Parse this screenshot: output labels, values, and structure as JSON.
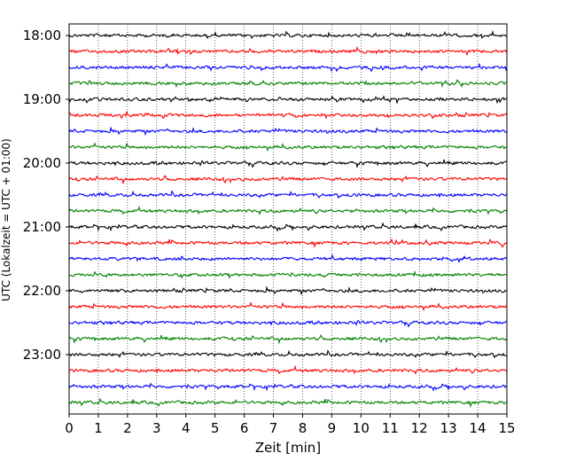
{
  "chart_data": {
    "type": "line",
    "title": "",
    "xlabel": "Zeit  [min]",
    "ylabel": "UTC (Lokalzeit = UTC + 01:00)",
    "xlim": [
      0,
      15
    ],
    "x_ticks": [
      "0",
      "1",
      "2",
      "3",
      "4",
      "5",
      "6",
      "7",
      "8",
      "9",
      "10",
      "11",
      "12",
      "13",
      "14",
      "15"
    ],
    "grid": {
      "vertical": true,
      "horizontal": false,
      "style": "dotted"
    },
    "y_tick_labels": [
      "18:00",
      "19:00",
      "20:00",
      "21:00",
      "22:00",
      "23:00"
    ],
    "trace_start_times": [
      "18:00",
      "18:15",
      "18:30",
      "18:45",
      "19:00",
      "19:15",
      "19:30",
      "19:45",
      "20:00",
      "20:15",
      "20:30",
      "20:45",
      "21:00",
      "21:15",
      "21:30",
      "21:45",
      "22:00",
      "22:15",
      "22:30",
      "22:45",
      "23:00",
      "23:15",
      "23:30",
      "23:45"
    ],
    "trace_colors": [
      "#000000",
      "#ff0000",
      "#0000ff",
      "#008000"
    ],
    "legend": "none"
  }
}
